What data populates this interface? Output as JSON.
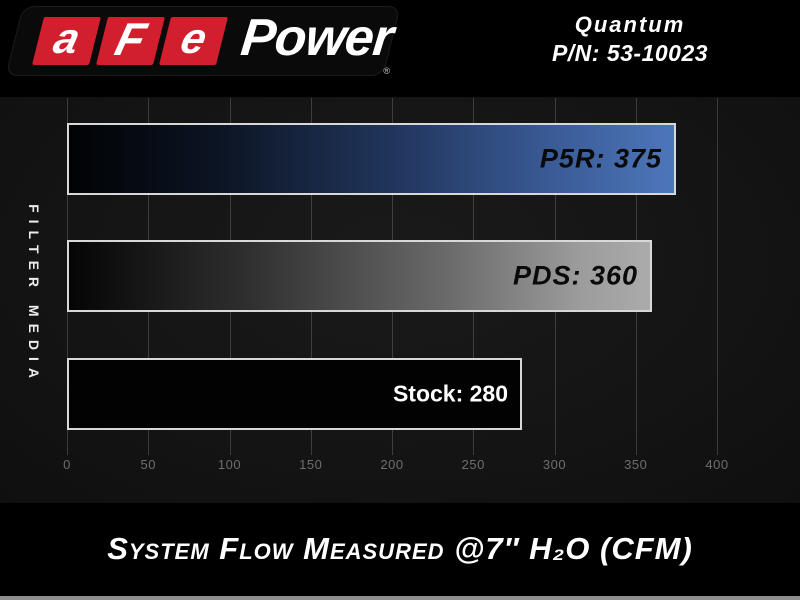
{
  "header": {
    "logo": {
      "letters": [
        "a",
        "F",
        "e"
      ],
      "power": "Power",
      "registered": "®"
    },
    "product": {
      "name": "Quantum",
      "part_number": "P/N: 53-10023"
    }
  },
  "chart_data": {
    "type": "bar",
    "orientation": "horizontal",
    "title": "System Flow Measured @7″ H₂O (CFM)",
    "ylabel": "FILTER MEDIA",
    "xlabel": "",
    "categories": [
      "P5R",
      "PDS",
      "Stock"
    ],
    "values": [
      375,
      360,
      280
    ],
    "bar_labels": [
      "P5R: 375",
      "PDS: 360",
      "Stock: 280"
    ],
    "bar_colors": [
      "#4d76ba",
      "#ababab",
      "#020202"
    ],
    "xlim": [
      0,
      400
    ],
    "xticks": [
      0,
      50,
      100,
      150,
      200,
      250,
      300,
      350,
      400
    ],
    "grid": true,
    "legend": false
  }
}
